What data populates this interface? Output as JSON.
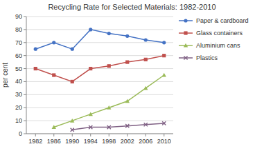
{
  "chart_data": {
    "type": "line",
    "title": "Recycling Rate for Selected Materials: 1982-2010",
    "ylabel": "per cent",
    "x": [
      1982,
      1986,
      1990,
      1994,
      1998,
      2002,
      2006,
      2010
    ],
    "xlim": [
      1980,
      2012
    ],
    "xticks": [
      1982,
      1986,
      1990,
      1994,
      1998,
      2002,
      2006,
      2010
    ],
    "ylim": [
      0,
      90
    ],
    "yticks": [
      0,
      10,
      20,
      30,
      40,
      50,
      60,
      70,
      80,
      90
    ],
    "grid": true,
    "legend": "right",
    "series": [
      {
        "name": "Paper & cardboard",
        "color": "#4472C4",
        "marker": "circle",
        "values": [
          65,
          70,
          65,
          80,
          77,
          75,
          72,
          70
        ]
      },
      {
        "name": "Glass containers",
        "color": "#C0504D",
        "marker": "square",
        "values": [
          50,
          45,
          40,
          50,
          52,
          55,
          57,
          60
        ]
      },
      {
        "name": "Aluminium cans",
        "color": "#9BBB59",
        "marker": "triangle",
        "values": [
          null,
          5,
          10,
          15,
          20,
          25,
          35,
          45
        ]
      },
      {
        "name": "Plastics",
        "color": "#7F6084",
        "marker": "x",
        "values": [
          null,
          null,
          3,
          5,
          5,
          6,
          7,
          8
        ]
      }
    ]
  }
}
